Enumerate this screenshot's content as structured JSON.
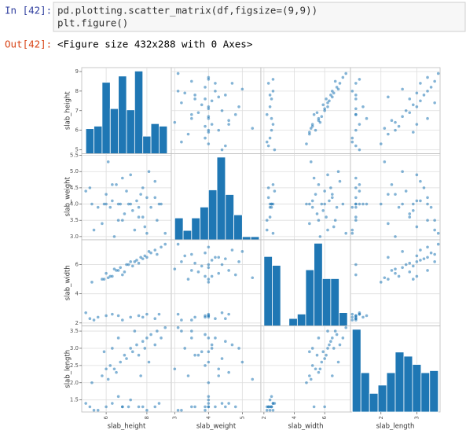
{
  "cell": {
    "prompt_in": "In [42]:",
    "code": [
      "pd.plotting.scatter_matrix(df,figsize=(9,9))",
      "plt.figure()"
    ],
    "prompt_out": "Out[42]:",
    "output": "<Figure size 432x288 with 0 Axes>"
  },
  "chart_data": {
    "type": "scatter_matrix",
    "color": "#1f77b4",
    "grid": true,
    "variables": [
      {
        "name": "slab_height",
        "lim": [
          4.8,
          9.2
        ],
        "yticks": [
          5,
          6,
          7,
          8,
          9
        ],
        "xticks": [
          6,
          8
        ],
        "bins": [
          5,
          5.4,
          5.8,
          6.2,
          6.6,
          7,
          7.4,
          7.8,
          8.2,
          8.6,
          9
        ],
        "hist": [
          20,
          22,
          57,
          36,
          62,
          35,
          66,
          14,
          24,
          22
        ]
      },
      {
        "name": "slab_weight",
        "lim": [
          2.9,
          5.55
        ],
        "yticks": [
          {
            "value": 3,
            "label": "3.0"
          },
          3.5,
          {
            "value": 4,
            "label": "4.0"
          },
          4.5,
          {
            "value": 5,
            "label": "5.0"
          },
          5.5
        ],
        "xticks": [
          3,
          4,
          5
        ],
        "bins": [
          3,
          3.25,
          3.5,
          3.75,
          4,
          4.25,
          4.5,
          4.75,
          5,
          5.25,
          5.5
        ],
        "hist": [
          14,
          6,
          14,
          21,
          32,
          53,
          29,
          16,
          2,
          2
        ]
      },
      {
        "name": "slab_width",
        "lim": [
          1.8,
          7.7
        ],
        "yticks": [
          2,
          4,
          6
        ],
        "xticks": [
          2,
          4,
          6
        ],
        "bins": [
          2,
          2.55,
          3.1,
          3.65,
          4.2,
          4.75,
          5.3,
          5.85,
          6.4,
          6.95,
          7.5
        ],
        "hist": [
          47,
          41,
          0,
          5,
          8,
          38,
          56,
          32,
          32,
          9
        ]
      },
      {
        "name": "slab_length",
        "lim": [
          1.15,
          3.65
        ],
        "yticks": [
          1.5,
          {
            "value": 2,
            "label": "2.0"
          },
          2.5,
          {
            "value": 3,
            "label": "3.0"
          },
          3.5
        ],
        "xticks": [
          2,
          3
        ],
        "bins": [
          1.2,
          1.44,
          1.68,
          1.92,
          2.16,
          2.4,
          2.64,
          2.88,
          3.12,
          3.36,
          3.6
        ],
        "hist": [
          40,
          19,
          9,
          13,
          19,
          29,
          27,
          23,
          19,
          20
        ]
      }
    ],
    "rows": [
      [
        5.2,
        4.5,
        2.3,
        1.3
      ],
      [
        5.6,
        3.9,
        2.4,
        1.2
      ],
      [
        6.0,
        4.0,
        2.5,
        1.3
      ],
      [
        6.3,
        4.6,
        2.6,
        1.4
      ],
      [
        6.8,
        3.5,
        2.2,
        1.3
      ],
      [
        7.2,
        4.0,
        2.4,
        1.5
      ],
      [
        7.6,
        3.9,
        2.5,
        1.3
      ],
      [
        8.0,
        3.1,
        2.6,
        1.2
      ],
      [
        8.4,
        4.2,
        2.3,
        1.3
      ],
      [
        5.0,
        4.4,
        2.7,
        1.4
      ],
      [
        6.6,
        4.0,
        2.5,
        1.6
      ],
      [
        7.8,
        3.6,
        2.4,
        1.3
      ],
      [
        5.4,
        3.2,
        2.2,
        1.2
      ],
      [
        8.6,
        4.0,
        2.6,
        1.4
      ],
      [
        5.3,
        4.0,
        4.8,
        2.0
      ],
      [
        5.8,
        3.4,
        5.0,
        2.2
      ],
      [
        6.0,
        4.3,
        5.4,
        2.4
      ],
      [
        6.2,
        3.9,
        5.2,
        2.5
      ],
      [
        6.5,
        4.6,
        5.6,
        2.3
      ],
      [
        6.7,
        4.0,
        5.8,
        2.6
      ],
      [
        6.9,
        3.7,
        5.5,
        2.8
      ],
      [
        7.0,
        4.4,
        6.0,
        2.7
      ],
      [
        7.2,
        4.9,
        6.2,
        3.0
      ],
      [
        7.3,
        3.8,
        5.9,
        2.9
      ],
      [
        7.5,
        4.1,
        6.3,
        3.1
      ],
      [
        7.6,
        3.6,
        6.1,
        2.8
      ],
      [
        7.8,
        4.5,
        6.4,
        3.2
      ],
      [
        7.9,
        3.3,
        6.6,
        3.0
      ],
      [
        8.0,
        4.2,
        6.5,
        3.3
      ],
      [
        8.2,
        3.9,
        6.8,
        3.4
      ],
      [
        8.4,
        4.7,
        7.0,
        3.1
      ],
      [
        8.5,
        3.5,
        6.7,
        3.5
      ],
      [
        8.7,
        4.0,
        7.2,
        3.3
      ],
      [
        8.9,
        3.1,
        7.4,
        3.6
      ],
      [
        6.1,
        5.3,
        5.1,
        2.1
      ],
      [
        6.4,
        3.0,
        5.7,
        2.4
      ],
      [
        7.1,
        4.0,
        6.0,
        1.3
      ],
      [
        6.8,
        4.8,
        5.3,
        1.3
      ],
      [
        7.4,
        3.2,
        6.2,
        3.5
      ],
      [
        5.9,
        4.0,
        5.0,
        2.9
      ],
      [
        8.1,
        5.0,
        6.9,
        2.6
      ],
      [
        6.6,
        3.5,
        5.6,
        3.3
      ],
      [
        7.7,
        4.3,
        6.5,
        2.2
      ],
      [
        6.3,
        4.1,
        5.2,
        3.0
      ]
    ]
  }
}
